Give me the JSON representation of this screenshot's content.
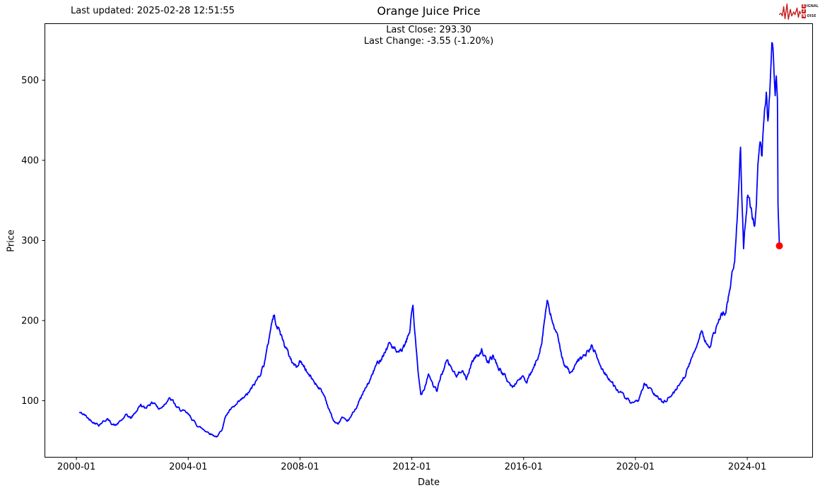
{
  "header": {
    "last_updated": "Last updated: 2025-02-28 12:51:55",
    "logo": {
      "s_box": "S",
      "s_rest": "IGNAL",
      "two": "2",
      "n_box": "N",
      "n_rest": "OISE",
      "accent": "#c41e1e"
    }
  },
  "chart_data": {
    "type": "line",
    "title": "Orange Juice Price",
    "subtitle_lines": [
      "Last Close: 293.30",
      "Last Change: -3.55 (-1.20%)"
    ],
    "xlabel": "Date",
    "ylabel": "Price",
    "last_close": 293.3,
    "last_change": -3.55,
    "last_change_pct": -1.2,
    "line_color": "#0000ff",
    "last_point_marker_color": "#ff0000",
    "grid": false,
    "legend_position": "none",
    "x_tick_years": [
      2000,
      2004,
      2008,
      2012,
      2016,
      2020,
      2024
    ],
    "x_tick_labels": [
      "2000-01",
      "2004-01",
      "2008-01",
      "2012-01",
      "2016-01",
      "2020-01",
      "2024-01"
    ],
    "y_ticks": [
      100,
      200,
      300,
      400,
      500
    ],
    "x_range_years": [
      1998.86,
      2026.35
    ],
    "y_range": [
      29,
      571
    ],
    "series": [
      {
        "name": "Orange Juice Price",
        "points": [
          [
            2000.12,
            85
          ],
          [
            2000.3,
            82
          ],
          [
            2000.45,
            77
          ],
          [
            2000.6,
            74
          ],
          [
            2000.8,
            70
          ],
          [
            2000.95,
            74
          ],
          [
            2001.1,
            77
          ],
          [
            2001.25,
            72
          ],
          [
            2001.4,
            69
          ],
          [
            2001.6,
            75
          ],
          [
            2001.8,
            82
          ],
          [
            2001.95,
            78
          ],
          [
            2002.1,
            85
          ],
          [
            2002.3,
            95
          ],
          [
            2002.45,
            90
          ],
          [
            2002.6,
            96
          ],
          [
            2002.8,
            98
          ],
          [
            2002.95,
            89
          ],
          [
            2003.1,
            94
          ],
          [
            2003.3,
            103
          ],
          [
            2003.45,
            99
          ],
          [
            2003.6,
            91
          ],
          [
            2003.8,
            87
          ],
          [
            2003.95,
            84
          ],
          [
            2004.1,
            79
          ],
          [
            2004.3,
            70
          ],
          [
            2004.5,
            65
          ],
          [
            2004.7,
            61
          ],
          [
            2004.9,
            57
          ],
          [
            2005.05,
            55
          ],
          [
            2005.2,
            64
          ],
          [
            2005.35,
            82
          ],
          [
            2005.5,
            88
          ],
          [
            2005.65,
            92
          ],
          [
            2005.8,
            97
          ],
          [
            2005.95,
            102
          ],
          [
            2006.1,
            107
          ],
          [
            2006.25,
            114
          ],
          [
            2006.4,
            122
          ],
          [
            2006.55,
            132
          ],
          [
            2006.7,
            145
          ],
          [
            2006.85,
            168
          ],
          [
            2006.95,
            192
          ],
          [
            2007.05,
            206
          ],
          [
            2007.15,
            198
          ],
          [
            2007.3,
            184
          ],
          [
            2007.45,
            170
          ],
          [
            2007.6,
            157
          ],
          [
            2007.75,
            147
          ],
          [
            2007.9,
            141
          ],
          [
            2007.98,
            150
          ],
          [
            2008.15,
            143
          ],
          [
            2008.3,
            133
          ],
          [
            2008.5,
            124
          ],
          [
            2008.7,
            116
          ],
          [
            2008.9,
            104
          ],
          [
            2009.05,
            88
          ],
          [
            2009.2,
            75
          ],
          [
            2009.35,
            70
          ],
          [
            2009.5,
            79
          ],
          [
            2009.65,
            73
          ],
          [
            2009.8,
            78
          ],
          [
            2009.95,
            88
          ],
          [
            2010.1,
            98
          ],
          [
            2010.3,
            112
          ],
          [
            2010.5,
            125
          ],
          [
            2010.7,
            142
          ],
          [
            2010.9,
            154
          ],
          [
            2011.05,
            162
          ],
          [
            2011.2,
            172
          ],
          [
            2011.35,
            166
          ],
          [
            2011.5,
            157
          ],
          [
            2011.65,
            163
          ],
          [
            2011.8,
            172
          ],
          [
            2011.92,
            186
          ],
          [
            2012.0,
            212
          ],
          [
            2012.04,
            220
          ],
          [
            2012.12,
            180
          ],
          [
            2012.22,
            135
          ],
          [
            2012.32,
            107
          ],
          [
            2012.45,
            117
          ],
          [
            2012.6,
            135
          ],
          [
            2012.75,
            121
          ],
          [
            2012.9,
            111
          ],
          [
            2013.05,
            132
          ],
          [
            2013.25,
            149
          ],
          [
            2013.45,
            139
          ],
          [
            2013.6,
            129
          ],
          [
            2013.8,
            141
          ],
          [
            2013.95,
            126
          ],
          [
            2014.15,
            149
          ],
          [
            2014.3,
            155
          ],
          [
            2014.5,
            164
          ],
          [
            2014.7,
            146
          ],
          [
            2014.9,
            156
          ],
          [
            2015.1,
            141
          ],
          [
            2015.3,
            132
          ],
          [
            2015.45,
            124
          ],
          [
            2015.6,
            116
          ],
          [
            2015.8,
            126
          ],
          [
            2015.95,
            130
          ],
          [
            2016.1,
            122
          ],
          [
            2016.3,
            136
          ],
          [
            2016.5,
            152
          ],
          [
            2016.65,
            176
          ],
          [
            2016.78,
            210
          ],
          [
            2016.84,
            224
          ],
          [
            2016.95,
            206
          ],
          [
            2017.1,
            192
          ],
          [
            2017.3,
            166
          ],
          [
            2017.5,
            142
          ],
          [
            2017.7,
            134
          ],
          [
            2017.9,
            146
          ],
          [
            2018.1,
            154
          ],
          [
            2018.3,
            161
          ],
          [
            2018.45,
            169
          ],
          [
            2018.6,
            156
          ],
          [
            2018.8,
            139
          ],
          [
            2019.0,
            131
          ],
          [
            2019.2,
            120
          ],
          [
            2019.4,
            112
          ],
          [
            2019.6,
            105
          ],
          [
            2019.8,
            98
          ],
          [
            2019.95,
            95
          ],
          [
            2020.1,
            100
          ],
          [
            2020.3,
            121
          ],
          [
            2020.45,
            117
          ],
          [
            2020.6,
            111
          ],
          [
            2020.8,
            103
          ],
          [
            2021.0,
            99
          ],
          [
            2021.2,
            104
          ],
          [
            2021.4,
            111
          ],
          [
            2021.6,
            123
          ],
          [
            2021.8,
            134
          ],
          [
            2022.0,
            151
          ],
          [
            2022.2,
            171
          ],
          [
            2022.35,
            189
          ],
          [
            2022.5,
            176
          ],
          [
            2022.65,
            164
          ],
          [
            2022.8,
            181
          ],
          [
            2022.95,
            197
          ],
          [
            2023.1,
            206
          ],
          [
            2023.25,
            214
          ],
          [
            2023.4,
            243
          ],
          [
            2023.55,
            278
          ],
          [
            2023.65,
            327
          ],
          [
            2023.72,
            395
          ],
          [
            2023.76,
            425
          ],
          [
            2023.8,
            372
          ],
          [
            2023.87,
            298
          ],
          [
            2023.94,
            322
          ],
          [
            2024.0,
            352
          ],
          [
            2024.08,
            362
          ],
          [
            2024.18,
            332
          ],
          [
            2024.28,
            321
          ],
          [
            2024.38,
            388
          ],
          [
            2024.46,
            428
          ],
          [
            2024.53,
            402
          ],
          [
            2024.6,
            452
          ],
          [
            2024.68,
            487
          ],
          [
            2024.74,
            442
          ],
          [
            2024.8,
            478
          ],
          [
            2024.88,
            549
          ],
          [
            2024.94,
            522
          ],
          [
            2025.0,
            492
          ],
          [
            2025.04,
            508
          ],
          [
            2025.08,
            478
          ],
          [
            2025.1,
            345
          ],
          [
            2025.15,
            293.3
          ]
        ]
      }
    ]
  }
}
